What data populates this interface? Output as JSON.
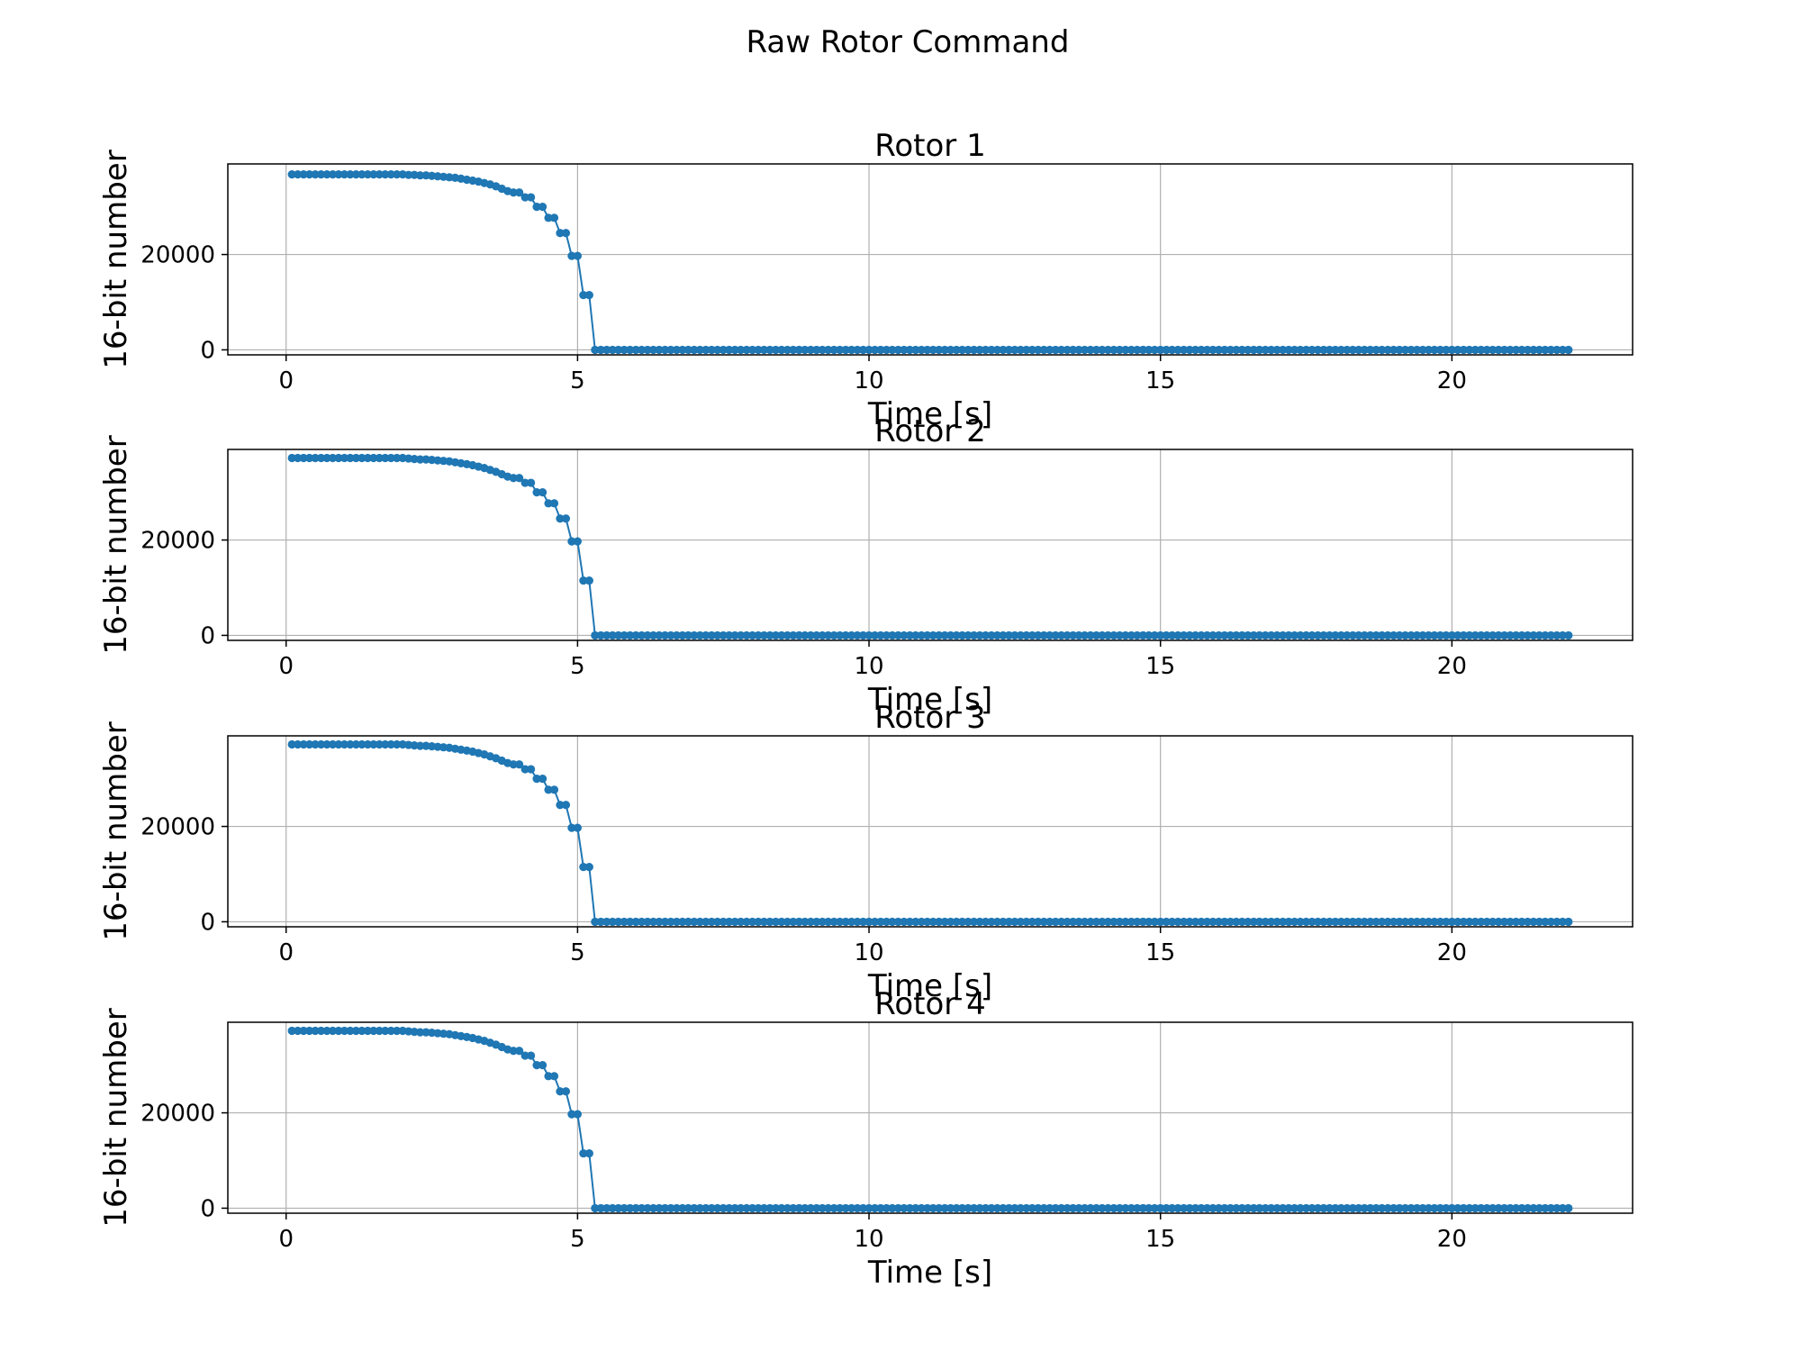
{
  "figure": {
    "title": "Raw Rotor Command",
    "series_color": "#1f77b4"
  },
  "chart_data": [
    {
      "type": "line",
      "title": "Rotor 1",
      "xlabel": "Time [s]",
      "ylabel": "16-bit number",
      "xlim": [
        -1.0,
        23.1
      ],
      "ylim": [
        -1050,
        39000
      ],
      "xticks": [
        "0",
        "5",
        "10",
        "15",
        "20"
      ],
      "yticks": [
        "0",
        "20000"
      ],
      "grid": true,
      "markers": true,
      "x": {
        "start": 0.1,
        "step": 0.1,
        "count": 220
      },
      "y_ramp": [
        36800,
        36800,
        36800,
        36800,
        36800,
        36800,
        36800,
        36800,
        36800,
        36800,
        36800,
        36800,
        36800,
        36800,
        36800,
        36800,
        36800,
        36800,
        36800,
        36800,
        36700,
        36700,
        36600,
        36600,
        36500,
        36400,
        36300,
        36200,
        36100,
        35900,
        35700,
        35500,
        35300,
        35000,
        34700,
        34300,
        33800,
        33300,
        33000,
        33000,
        32000,
        32000,
        30000,
        30000,
        27700,
        27700,
        24500,
        24500,
        19700,
        19700,
        11500,
        11500
      ],
      "y_tail": 0
    },
    {
      "type": "line",
      "title": "Rotor 2",
      "xlabel": "Time [s]",
      "ylabel": "16-bit number",
      "xlim": [
        -1.0,
        23.1
      ],
      "ylim": [
        -1050,
        39000
      ],
      "xticks": [
        "0",
        "5",
        "10",
        "15",
        "20"
      ],
      "yticks": [
        "0",
        "20000"
      ],
      "grid": true,
      "markers": true,
      "x": {
        "start": 0.1,
        "step": 0.1,
        "count": 220
      },
      "y_ramp": [
        37200,
        37200,
        37200,
        37200,
        37200,
        37200,
        37200,
        37200,
        37200,
        37200,
        37200,
        37200,
        37200,
        37200,
        37200,
        37200,
        37200,
        37200,
        37200,
        37200,
        37100,
        37000,
        36900,
        36900,
        36800,
        36700,
        36600,
        36500,
        36300,
        36100,
        35900,
        35700,
        35400,
        35100,
        34700,
        34300,
        33800,
        33300,
        33000,
        33000,
        32000,
        32000,
        30000,
        30000,
        27700,
        27700,
        24500,
        24500,
        19700,
        19700,
        11500,
        11500
      ],
      "y_tail": 0
    },
    {
      "type": "line",
      "title": "Rotor 3",
      "xlabel": "Time [s]",
      "ylabel": "16-bit number",
      "xlim": [
        -1.0,
        23.1
      ],
      "ylim": [
        -1050,
        39000
      ],
      "xticks": [
        "0",
        "5",
        "10",
        "15",
        "20"
      ],
      "yticks": [
        "0",
        "20000"
      ],
      "grid": true,
      "markers": true,
      "x": {
        "start": 0.1,
        "step": 0.1,
        "count": 220
      },
      "y_ramp": [
        37200,
        37200,
        37200,
        37200,
        37200,
        37200,
        37200,
        37200,
        37200,
        37200,
        37200,
        37200,
        37200,
        37200,
        37200,
        37200,
        37200,
        37200,
        37200,
        37200,
        37100,
        37000,
        36900,
        36900,
        36800,
        36700,
        36600,
        36500,
        36300,
        36100,
        35900,
        35700,
        35400,
        35100,
        34700,
        34300,
        33800,
        33300,
        33000,
        33000,
        32000,
        32000,
        30000,
        30000,
        27700,
        27700,
        24500,
        24500,
        19700,
        19700,
        11500,
        11500
      ],
      "y_tail": 0
    },
    {
      "type": "line",
      "title": "Rotor 4",
      "xlabel": "Time [s]",
      "ylabel": "16-bit number",
      "xlim": [
        -1.0,
        23.1
      ],
      "ylim": [
        -1050,
        39000
      ],
      "xticks": [
        "0",
        "5",
        "10",
        "15",
        "20"
      ],
      "yticks": [
        "0",
        "20000"
      ],
      "grid": true,
      "markers": true,
      "x": {
        "start": 0.1,
        "step": 0.1,
        "count": 220
      },
      "y_ramp": [
        37200,
        37200,
        37200,
        37200,
        37200,
        37200,
        37200,
        37200,
        37200,
        37200,
        37200,
        37200,
        37200,
        37200,
        37200,
        37200,
        37200,
        37200,
        37200,
        37200,
        37100,
        37000,
        36900,
        36900,
        36800,
        36700,
        36600,
        36500,
        36300,
        36100,
        35900,
        35700,
        35400,
        35100,
        34700,
        34300,
        33800,
        33300,
        33000,
        33000,
        32000,
        32000,
        30000,
        30000,
        27700,
        27700,
        24500,
        24500,
        19700,
        19700,
        11500,
        11500
      ],
      "y_tail": 0
    }
  ]
}
